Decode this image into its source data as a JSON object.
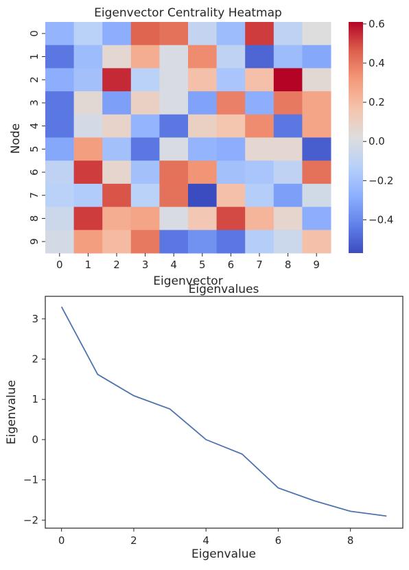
{
  "chart_data": [
    {
      "type": "heatmap",
      "title": "Eigenvector Centrality Heatmap",
      "xlabel": "Eigenvector",
      "ylabel": "Node",
      "x": [
        "0",
        "1",
        "2",
        "3",
        "4",
        "5",
        "6",
        "7",
        "8",
        "9"
      ],
      "y": [
        "0",
        "1",
        "2",
        "3",
        "4",
        "5",
        "6",
        "7",
        "8",
        "9"
      ],
      "colormap": "coolwarm",
      "vmin": -0.57,
      "vmax": 0.61,
      "colorbar_ticks": [
        0.6,
        0.4,
        0.2,
        0.0,
        -0.2,
        -0.4
      ],
      "colorbar_tick_labels": [
        "0.6",
        "0.4",
        "0.2",
        "0.0",
        "−0.2",
        "−0.4"
      ],
      "values": [
        [
          -0.25,
          -0.12,
          -0.28,
          0.45,
          0.42,
          -0.08,
          -0.22,
          0.52,
          -0.1,
          0.02
        ],
        [
          -0.45,
          -0.22,
          0.06,
          0.25,
          0.0,
          0.35,
          -0.1,
          -0.5,
          -0.22,
          -0.3
        ],
        [
          -0.28,
          -0.2,
          0.55,
          -0.12,
          0.0,
          0.18,
          -0.18,
          0.18,
          0.61,
          0.05
        ],
        [
          -0.45,
          0.05,
          -0.33,
          0.1,
          0.0,
          -0.32,
          0.38,
          -0.28,
          0.4,
          0.28
        ],
        [
          -0.45,
          -0.02,
          0.08,
          -0.25,
          -0.45,
          0.1,
          0.16,
          0.35,
          -0.45,
          0.28
        ],
        [
          -0.3,
          0.3,
          -0.2,
          -0.45,
          0.0,
          -0.25,
          -0.28,
          0.06,
          0.06,
          -0.52
        ],
        [
          -0.1,
          0.52,
          0.07,
          -0.2,
          0.42,
          0.33,
          -0.2,
          -0.18,
          -0.1,
          0.42
        ],
        [
          -0.12,
          -0.15,
          0.48,
          -0.12,
          0.42,
          -0.57,
          0.18,
          -0.14,
          -0.33,
          -0.03
        ],
        [
          -0.05,
          0.52,
          0.25,
          0.28,
          0.0,
          0.15,
          0.5,
          0.22,
          0.07,
          -0.28
        ],
        [
          -0.02,
          0.3,
          0.2,
          0.4,
          -0.45,
          -0.37,
          -0.45,
          -0.14,
          -0.05,
          0.18
        ]
      ]
    },
    {
      "type": "line",
      "title": "Eigenvalues",
      "xlabel": "Eigenvalue",
      "ylabel": "Eigenvalue",
      "x": [
        0,
        1,
        2,
        3,
        4,
        5,
        6,
        7,
        8,
        9
      ],
      "y": [
        3.3,
        1.62,
        1.09,
        0.76,
        0.0,
        -0.36,
        -1.2,
        -1.52,
        -1.78,
        -1.9
      ],
      "xlim": [
        -0.45,
        9.45
      ],
      "ylim": [
        -2.2,
        3.56
      ],
      "xticks": [
        0,
        2,
        4,
        6,
        8
      ],
      "xtick_labels": [
        "0",
        "2",
        "4",
        "6",
        "8"
      ],
      "yticks": [
        3,
        2,
        1,
        0,
        -1,
        -2
      ],
      "ytick_labels": [
        "3",
        "2",
        "1",
        "0",
        "−1",
        "−2"
      ],
      "line_color": "#4c72b0",
      "grid": false
    }
  ]
}
